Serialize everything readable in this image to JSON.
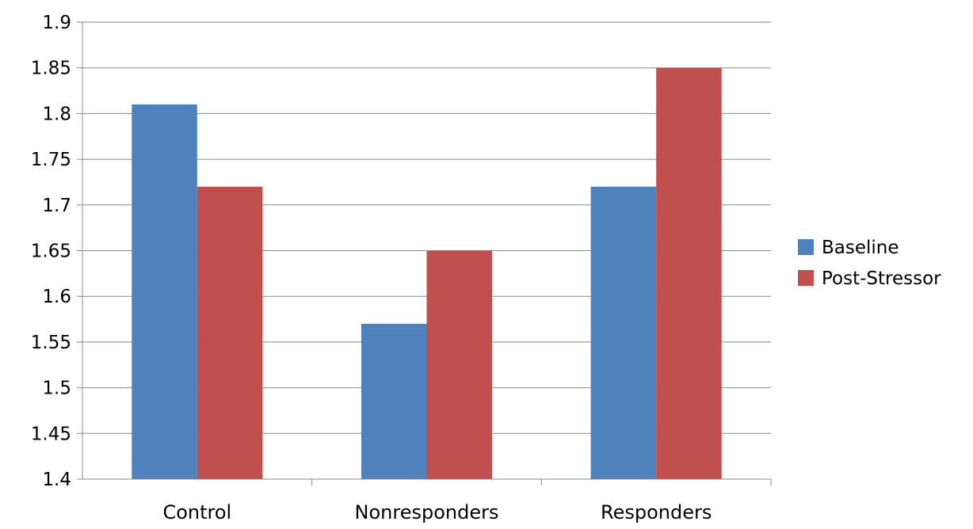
{
  "chart_data": {
    "type": "bar",
    "categories": [
      "Control",
      "Nonresponders",
      "Responders"
    ],
    "series": [
      {
        "name": "Baseline",
        "values": [
          1.81,
          1.57,
          1.72
        ],
        "color": "#4f81bd"
      },
      {
        "name": "Post-Stressor",
        "values": [
          1.72,
          1.65,
          1.85
        ],
        "color": "#c0504d"
      }
    ],
    "title": "",
    "xlabel": "",
    "ylabel": "",
    "ylim": [
      1.4,
      1.9
    ],
    "yticks": [
      "1.4",
      "1.45",
      "1.5",
      "1.55",
      "1.6",
      "1.65",
      "1.7",
      "1.75",
      "1.8",
      "1.85",
      "1.9"
    ],
    "grid": true,
    "legend": "right",
    "gridline_color": "#888888"
  }
}
